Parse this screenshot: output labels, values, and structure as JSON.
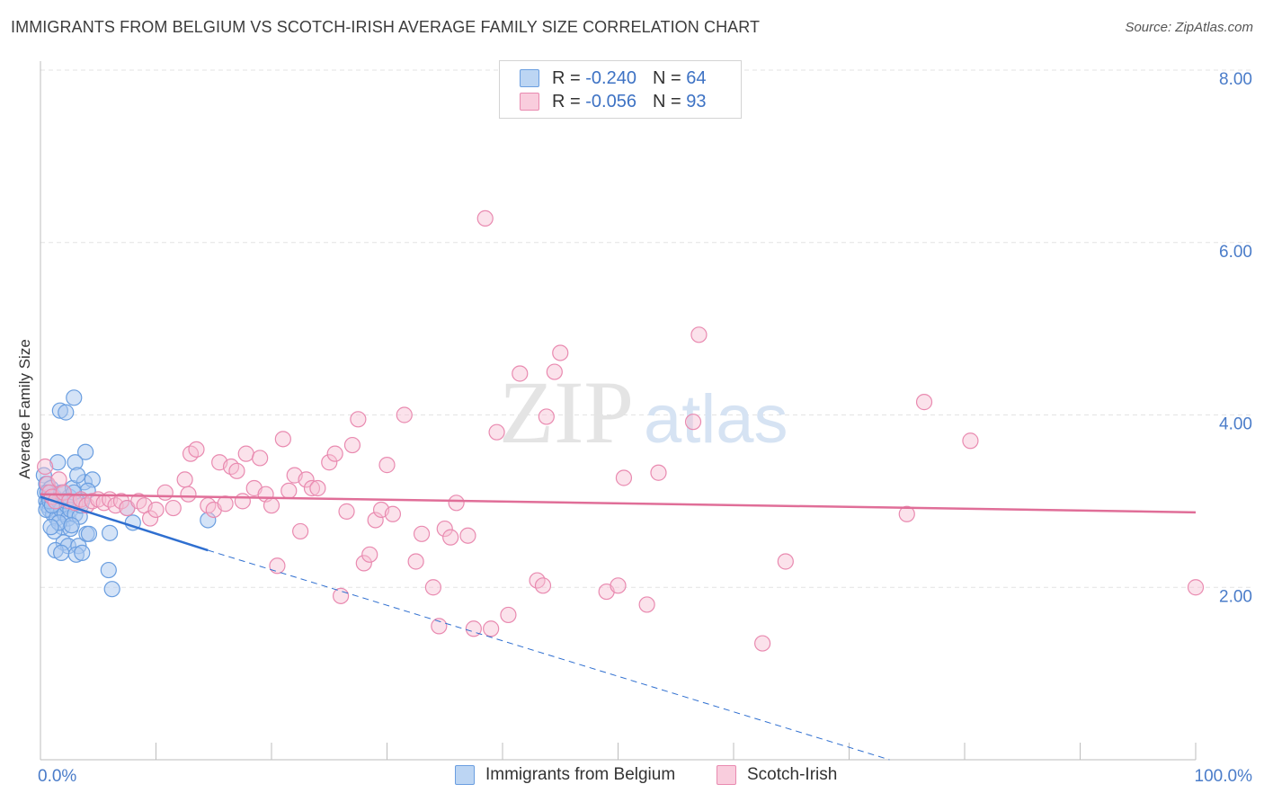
{
  "header": {
    "title": "IMMIGRANTS FROM BELGIUM VS SCOTCH-IRISH AVERAGE FAMILY SIZE CORRELATION CHART",
    "source": "Source: ZipAtlas.com"
  },
  "legend_top": {
    "rows": [
      {
        "r_label": "R =",
        "r_value": "-0.240",
        "n_label": "N =",
        "n_value": "64"
      },
      {
        "r_label": "R =",
        "r_value": "-0.056",
        "n_label": "N =",
        "n_value": "93"
      }
    ]
  },
  "watermark": {
    "zip": "ZIP",
    "atlas": "atlas"
  },
  "colors": {
    "belgium_fill": "#a9c8f0",
    "belgium_stroke": "#6a9ee0",
    "belgium_line": "#2f6fd0",
    "scotch_fill": "#f7bfd2",
    "scotch_stroke": "#e98ab0",
    "scotch_line": "#e06e98",
    "tick_text": "#4a7cc9",
    "grid": "#e3e3e3"
  },
  "chart_data": {
    "type": "scatter",
    "title": "IMMIGRANTS FROM BELGIUM VS SCOTCH-IRISH AVERAGE FAMILY SIZE CORRELATION CHART",
    "xlabel": "",
    "ylabel": "Average Family Size",
    "xlim": [
      0,
      100
    ],
    "ylim": [
      0,
      8.0
    ],
    "x_ticks": [
      "0.0%",
      "100.0%"
    ],
    "y_ticks": [
      {
        "value": 2,
        "label": "2.00"
      },
      {
        "value": 4,
        "label": "4.00"
      },
      {
        "value": 6,
        "label": "6.00"
      },
      {
        "value": 8,
        "label": "8.00"
      }
    ],
    "grid": true,
    "legend_position": "top-center",
    "series": [
      {
        "name": "Immigrants from Belgium",
        "r": -0.24,
        "n": 64,
        "trend": {
          "x0": 0,
          "y0": 3.05,
          "x1": 14.5,
          "y1": 2.43,
          "dash_x_end": 73.5,
          "dash_y_end": 0.0
        },
        "points": [
          [
            0.3,
            3.3
          ],
          [
            0.4,
            3.1
          ],
          [
            0.5,
            3.0
          ],
          [
            0.5,
            3.2
          ],
          [
            0.6,
            2.95
          ],
          [
            0.7,
            3.05
          ],
          [
            0.8,
            2.9
          ],
          [
            0.9,
            3.15
          ],
          [
            1.0,
            3.0
          ],
          [
            1.1,
            2.85
          ],
          [
            1.2,
            3.05
          ],
          [
            1.3,
            2.95
          ],
          [
            0.5,
            2.9
          ],
          [
            0.6,
            3.1
          ],
          [
            0.8,
            3.0
          ],
          [
            1.4,
            2.8
          ],
          [
            1.6,
            3.0
          ],
          [
            1.8,
            2.9
          ],
          [
            2.0,
            3.1
          ],
          [
            1.9,
            2.7
          ],
          [
            2.1,
            2.85
          ],
          [
            2.3,
            2.95
          ],
          [
            2.5,
            3.05
          ],
          [
            2.4,
            2.8
          ],
          [
            1.5,
            3.45
          ],
          [
            1.8,
            3.1
          ],
          [
            2.2,
            3.0
          ],
          [
            2.6,
            2.9
          ],
          [
            3.0,
            2.85
          ],
          [
            2.8,
            3.15
          ],
          [
            1.7,
            4.05
          ],
          [
            2.2,
            4.03
          ],
          [
            2.9,
            4.2
          ],
          [
            3.9,
            3.57
          ],
          [
            3.8,
            3.22
          ],
          [
            4.5,
            3.25
          ],
          [
            3.0,
            3.45
          ],
          [
            3.2,
            3.3
          ],
          [
            3.4,
            2.82
          ],
          [
            3.6,
            3.0
          ],
          [
            4.1,
            3.12
          ],
          [
            2.6,
            2.68
          ],
          [
            2.0,
            2.52
          ],
          [
            2.4,
            2.48
          ],
          [
            3.3,
            2.48
          ],
          [
            1.3,
            2.43
          ],
          [
            1.8,
            2.4
          ],
          [
            3.1,
            2.38
          ],
          [
            4.0,
            2.62
          ],
          [
            3.6,
            2.4
          ],
          [
            1.2,
            2.65
          ],
          [
            1.6,
            2.75
          ],
          [
            2.7,
            2.72
          ],
          [
            6.0,
            2.63
          ],
          [
            5.9,
            2.2
          ],
          [
            6.2,
            1.98
          ],
          [
            7.5,
            2.92
          ],
          [
            8.0,
            2.75
          ],
          [
            14.5,
            2.78
          ],
          [
            4.2,
            2.62
          ],
          [
            0.9,
            2.7
          ],
          [
            1.0,
            2.95
          ],
          [
            2.9,
            3.1
          ],
          [
            3.5,
            2.95
          ]
        ]
      },
      {
        "name": "Scotch-Irish",
        "r": -0.056,
        "n": 93,
        "trend": {
          "x0": 0,
          "y0": 3.08,
          "x1": 100,
          "y1": 2.87
        },
        "points": [
          [
            0.4,
            3.4
          ],
          [
            0.6,
            3.2
          ],
          [
            0.8,
            3.1
          ],
          [
            1.0,
            3.05
          ],
          [
            1.3,
            3.0
          ],
          [
            1.6,
            3.25
          ],
          [
            2.0,
            3.1
          ],
          [
            2.5,
            3.0
          ],
          [
            3.0,
            2.98
          ],
          [
            3.5,
            3.02
          ],
          [
            4.0,
            2.95
          ],
          [
            4.5,
            3.0
          ],
          [
            5.0,
            3.02
          ],
          [
            5.5,
            2.98
          ],
          [
            6.0,
            3.02
          ],
          [
            6.5,
            2.95
          ],
          [
            7.0,
            3.0
          ],
          [
            7.5,
            2.92
          ],
          [
            8.5,
            3.0
          ],
          [
            9.0,
            2.95
          ],
          [
            9.5,
            2.8
          ],
          [
            10.0,
            2.9
          ],
          [
            10.8,
            3.1
          ],
          [
            11.5,
            2.92
          ],
          [
            12.5,
            3.25
          ],
          [
            12.8,
            3.08
          ],
          [
            13.0,
            3.55
          ],
          [
            13.5,
            3.6
          ],
          [
            14.5,
            2.95
          ],
          [
            15.0,
            2.9
          ],
          [
            15.5,
            3.45
          ],
          [
            16.0,
            2.97
          ],
          [
            16.5,
            3.4
          ],
          [
            17.0,
            3.35
          ],
          [
            17.5,
            3.0
          ],
          [
            17.8,
            3.55
          ],
          [
            18.5,
            3.15
          ],
          [
            19.0,
            3.5
          ],
          [
            19.5,
            3.08
          ],
          [
            20.0,
            2.95
          ],
          [
            20.5,
            2.25
          ],
          [
            21.0,
            3.72
          ],
          [
            21.5,
            3.12
          ],
          [
            22.0,
            3.3
          ],
          [
            22.5,
            2.65
          ],
          [
            23.0,
            3.25
          ],
          [
            23.5,
            3.15
          ],
          [
            24.0,
            3.15
          ],
          [
            25.0,
            3.45
          ],
          [
            25.5,
            3.55
          ],
          [
            26.0,
            1.9
          ],
          [
            26.5,
            2.88
          ],
          [
            27.0,
            3.65
          ],
          [
            27.5,
            3.95
          ],
          [
            28.0,
            2.28
          ],
          [
            28.5,
            2.38
          ],
          [
            29.0,
            2.78
          ],
          [
            29.5,
            2.9
          ],
          [
            30.0,
            3.42
          ],
          [
            30.5,
            2.85
          ],
          [
            31.5,
            4.0
          ],
          [
            32.5,
            2.3
          ],
          [
            33.0,
            2.62
          ],
          [
            34.0,
            2.0
          ],
          [
            34.5,
            1.55
          ],
          [
            35.0,
            2.68
          ],
          [
            35.5,
            2.58
          ],
          [
            36.0,
            2.98
          ],
          [
            37.0,
            2.6
          ],
          [
            37.5,
            1.52
          ],
          [
            38.5,
            6.28
          ],
          [
            39.0,
            1.52
          ],
          [
            39.5,
            3.8
          ],
          [
            40.5,
            1.68
          ],
          [
            41.5,
            4.48
          ],
          [
            43.0,
            2.08
          ],
          [
            43.5,
            2.02
          ],
          [
            43.8,
            3.98
          ],
          [
            44.5,
            4.5
          ],
          [
            45.0,
            4.72
          ],
          [
            49.0,
            1.95
          ],
          [
            50.0,
            2.02
          ],
          [
            50.5,
            3.27
          ],
          [
            52.5,
            1.8
          ],
          [
            53.5,
            3.33
          ],
          [
            56.5,
            3.92
          ],
          [
            57.0,
            4.93
          ],
          [
            62.5,
            1.35
          ],
          [
            64.5,
            2.3
          ],
          [
            75.0,
            2.85
          ],
          [
            76.5,
            4.15
          ],
          [
            80.5,
            3.7
          ],
          [
            100.0,
            2.0
          ]
        ]
      }
    ]
  },
  "bottom_legend": [
    {
      "label": "Immigrants from Belgium"
    },
    {
      "label": "Scotch-Irish"
    }
  ]
}
